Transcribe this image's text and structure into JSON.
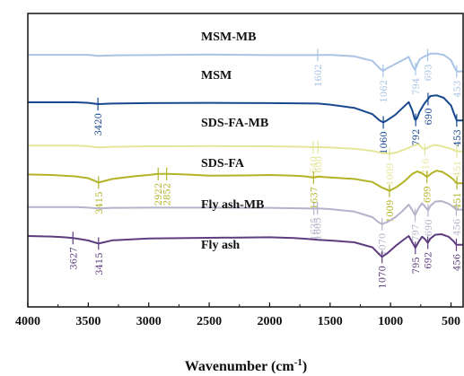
{
  "chart_data": {
    "type": "line",
    "title": "",
    "xlabel": "Wavenumber (cm",
    "xlabel_sup": "-1",
    "xlabel_close": ")",
    "ylabel": "",
    "xlim": [
      4000,
      400
    ],
    "x_reversed": true,
    "x_ticks": [
      4000,
      3500,
      3000,
      2500,
      2000,
      1500,
      1000,
      500
    ],
    "grid": false,
    "legend": "none",
    "series": [
      {
        "name": "MSM-MB",
        "color": "#a9c4e4",
        "x": [
          4000,
          3600,
          3500,
          3420,
          3300,
          3000,
          2500,
          2000,
          1602,
          1500,
          1300,
          1150,
          1090,
          1062,
          1030,
          960,
          900,
          850,
          820,
          800,
          794,
          785,
          760,
          720,
          693,
          670,
          620,
          560,
          500,
          470,
          453,
          400
        ],
        "y": [
          -0.4,
          -0.4,
          -0.4,
          -0.8,
          -0.6,
          -0.5,
          -0.3,
          -0.5,
          -0.5,
          -0.4,
          -1.0,
          -2.8,
          -5.8,
          -6.8,
          -5.8,
          -4.0,
          -2.5,
          -1.2,
          -4.5,
          -6.2,
          -6.0,
          -4.8,
          -2.2,
          -1.0,
          -0.5,
          0.1,
          0.1,
          -0.4,
          -2.5,
          -5.5,
          -7.0,
          -7.0
        ],
        "annotations": [
          {
            "label": "1602",
            "x": 1602,
            "y": -0.5
          },
          {
            "label": "1062",
            "x": 1062,
            "y": -6.8
          },
          {
            "label": "794",
            "x": 794,
            "y": -6.0
          },
          {
            "label": "693",
            "x": 693,
            "y": -0.5
          },
          {
            "label": "453",
            "x": 453,
            "y": -7.0
          }
        ]
      },
      {
        "name": "MSM",
        "color": "#17488f",
        "x": [
          4000,
          3600,
          3500,
          3420,
          3300,
          3000,
          2500,
          2000,
          1700,
          1600,
          1500,
          1300,
          1150,
          1090,
          1060,
          1030,
          960,
          900,
          850,
          820,
          800,
          792,
          780,
          760,
          720,
          690,
          670,
          620,
          560,
          500,
          470,
          453,
          400
        ],
        "y": [
          -19.3,
          -19.3,
          -19.5,
          -20.0,
          -19.8,
          -19.6,
          -19.5,
          -19.6,
          -19.7,
          -19.8,
          -20.2,
          -21.5,
          -24.0,
          -26.5,
          -27.3,
          -26.5,
          -24.2,
          -21.5,
          -19.2,
          -22.5,
          -26.0,
          -26.3,
          -25.5,
          -23.0,
          -19.8,
          -18.0,
          -16.8,
          -16.5,
          -17.5,
          -20.5,
          -24.5,
          -26.5,
          -26.5
        ],
        "annotations": [
          {
            "label": "3420",
            "x": 3420,
            "y": -20.0
          },
          {
            "label": "1060",
            "x": 1060,
            "y": -27.3
          },
          {
            "label": "792",
            "x": 792,
            "y": -26.3
          },
          {
            "label": "690",
            "x": 690,
            "y": -18.0
          },
          {
            "label": "453",
            "x": 453,
            "y": -26.5
          }
        ]
      },
      {
        "name": "SDS-FA-MB",
        "color": "#e4e69a",
        "x": [
          4000,
          3600,
          3500,
          3415,
          3300,
          3000,
          2922,
          2852,
          2500,
          2000,
          1700,
          1640,
          1600,
          1500,
          1300,
          1150,
          1080,
          1009,
          950,
          880,
          820,
          780,
          760,
          740,
          716,
          680,
          640,
          600,
          560,
          500,
          470,
          451,
          400
        ],
        "y": [
          -36.5,
          -36.5,
          -36.8,
          -37.3,
          -37.0,
          -36.8,
          -36.8,
          -36.8,
          -36.7,
          -36.8,
          -37.0,
          -37.2,
          -37.1,
          -37.3,
          -37.8,
          -38.6,
          -39.4,
          -39.8,
          -39.2,
          -38.0,
          -36.8,
          -36.0,
          -36.3,
          -37.5,
          -38.0,
          -37.0,
          -36.3,
          -36.5,
          -37.0,
          -37.8,
          -38.5,
          -38.8,
          -38.8
        ],
        "annotations": [
          {
            "label": "1640",
            "x": 1640,
            "y": -37.2
          },
          {
            "label": "1600",
            "x": 1600,
            "y": -37.1
          },
          {
            "label": "1009",
            "x": 1009,
            "y": -39.8
          },
          {
            "label": "716",
            "x": 716,
            "y": -38.0
          },
          {
            "label": "451",
            "x": 451,
            "y": -38.8
          }
        ]
      },
      {
        "name": "SDS-FA",
        "color": "#b3b327",
        "x": [
          4000,
          3800,
          3600,
          3500,
          3415,
          3300,
          3100,
          3000,
          2922,
          2852,
          2700,
          2500,
          2200,
          2000,
          1800,
          1700,
          1637,
          1600,
          1500,
          1300,
          1150,
          1080,
          1009,
          950,
          880,
          820,
          780,
          740,
          699,
          660,
          620,
          570,
          520,
          480,
          460,
          451,
          400
        ],
        "y": [
          -48.0,
          -48.2,
          -48.8,
          -49.5,
          -51.2,
          -49.8,
          -48.6,
          -48.2,
          -47.8,
          -47.8,
          -48.0,
          -48.5,
          -48.4,
          -48.2,
          -48.5,
          -48.8,
          -49.3,
          -48.9,
          -49.2,
          -49.8,
          -51.0,
          -53.0,
          -54.5,
          -53.0,
          -50.5,
          -47.8,
          -46.8,
          -47.5,
          -49.0,
          -47.5,
          -46.5,
          -47.0,
          -48.5,
          -50.0,
          -51.2,
          -51.5,
          -51.5
        ],
        "annotations": [
          {
            "label": "3415",
            "x": 3415,
            "y": -51.2
          },
          {
            "label": "2922",
            "x": 2922,
            "y": -47.8
          },
          {
            "label": "2852",
            "x": 2852,
            "y": -47.8
          },
          {
            "label": "1637",
            "x": 1637,
            "y": -49.3
          },
          {
            "label": "1009",
            "x": 1009,
            "y": -54.5
          },
          {
            "label": "699",
            "x": 699,
            "y": -49.0
          },
          {
            "label": "451",
            "x": 451,
            "y": -51.5
          }
        ]
      },
      {
        "name": "Fly ash-MB",
        "color": "#b5b3ca",
        "x": [
          4000,
          3600,
          3500,
          3415,
          3300,
          3000,
          2500,
          2000,
          1700,
          1635,
          1605,
          1500,
          1300,
          1150,
          1100,
          1070,
          1030,
          960,
          900,
          850,
          820,
          797,
          770,
          740,
          720,
          690,
          670,
          630,
          580,
          520,
          480,
          456,
          400
        ],
        "y": [
          -61.0,
          -61.0,
          -61.2,
          -61.5,
          -61.3,
          -61.2,
          -61.2,
          -61.3,
          -61.5,
          -61.6,
          -61.5,
          -61.8,
          -62.8,
          -65.0,
          -67.0,
          -67.8,
          -67.0,
          -65.0,
          -62.5,
          -60.0,
          -62.2,
          -64.2,
          -61.5,
          -59.5,
          -60.5,
          -62.3,
          -60.5,
          -58.8,
          -58.6,
          -59.6,
          -61.0,
          -62.0,
          -62.0
        ],
        "annotations": [
          {
            "label": "1635",
            "x": 1635,
            "y": -61.6
          },
          {
            "label": "1605",
            "x": 1605,
            "y": -61.5
          },
          {
            "label": "1070",
            "x": 1070,
            "y": -67.8
          },
          {
            "label": "797",
            "x": 797,
            "y": -64.2
          },
          {
            "label": "690",
            "x": 690,
            "y": -62.3
          },
          {
            "label": "456",
            "x": 456,
            "y": -62.0
          }
        ]
      },
      {
        "name": "Fly ash",
        "color": "#5d3d7f",
        "x": [
          4000,
          3800,
          3700,
          3627,
          3560,
          3500,
          3415,
          3300,
          3000,
          2500,
          2000,
          1800,
          1700,
          1600,
          1500,
          1300,
          1150,
          1100,
          1070,
          1030,
          960,
          900,
          850,
          820,
          795,
          770,
          740,
          720,
          692,
          670,
          630,
          580,
          520,
          480,
          456,
          400
        ],
        "y": [
          -72.5,
          -72.7,
          -73.0,
          -73.3,
          -73.8,
          -74.3,
          -75.5,
          -74.2,
          -73.5,
          -73.2,
          -73.0,
          -73.3,
          -73.6,
          -74.0,
          -74.3,
          -75.0,
          -77.0,
          -79.5,
          -80.8,
          -79.5,
          -76.5,
          -74.3,
          -72.5,
          -75.0,
          -77.2,
          -75.0,
          -72.8,
          -73.5,
          -75.2,
          -73.5,
          -72.0,
          -71.8,
          -72.8,
          -74.5,
          -76.0,
          -76.0
        ],
        "annotations": [
          {
            "label": "3627",
            "x": 3627,
            "y": -73.3
          },
          {
            "label": "3415",
            "x": 3415,
            "y": -75.5
          },
          {
            "label": "1070",
            "x": 1070,
            "y": -80.8
          },
          {
            "label": "795",
            "x": 795,
            "y": -77.2
          },
          {
            "label": "692",
            "x": 692,
            "y": -75.2
          },
          {
            "label": "456",
            "x": 456,
            "y": -76.0
          }
        ]
      }
    ]
  }
}
